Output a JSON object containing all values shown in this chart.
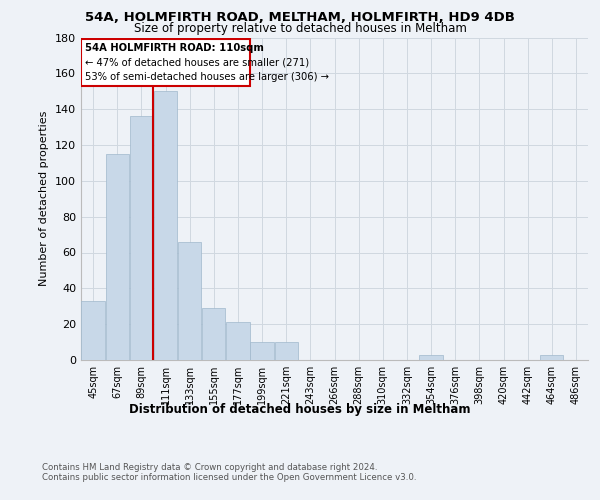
{
  "title1": "54A, HOLMFIRTH ROAD, MELTHAM, HOLMFIRTH, HD9 4DB",
  "title2": "Size of property relative to detached houses in Meltham",
  "xlabel": "Distribution of detached houses by size in Meltham",
  "ylabel": "Number of detached properties",
  "bar_color": "#c8d8e8",
  "bar_edge_color": "#a0b8cc",
  "bin_labels": [
    "45sqm",
    "67sqm",
    "89sqm",
    "111sqm",
    "133sqm",
    "155sqm",
    "177sqm",
    "199sqm",
    "221sqm",
    "243sqm",
    "266sqm",
    "288sqm",
    "310sqm",
    "332sqm",
    "354sqm",
    "376sqm",
    "398sqm",
    "420sqm",
    "442sqm",
    "464sqm",
    "486sqm"
  ],
  "bar_heights": [
    33,
    115,
    136,
    150,
    66,
    29,
    21,
    10,
    10,
    0,
    0,
    0,
    0,
    0,
    3,
    0,
    0,
    0,
    0,
    3,
    0
  ],
  "property_label": "54A HOLMFIRTH ROAD: 110sqm",
  "annotation_line1": "← 47% of detached houses are smaller (271)",
  "annotation_line2": "53% of semi-detached houses are larger (306) →",
  "ylim": [
    0,
    180
  ],
  "yticks": [
    0,
    20,
    40,
    60,
    80,
    100,
    120,
    140,
    160,
    180
  ],
  "box_color": "#cc0000",
  "grid_color": "#d0d8e0",
  "footnote1": "Contains HM Land Registry data © Crown copyright and database right 2024.",
  "footnote2": "Contains public sector information licensed under the Open Government Licence v3.0.",
  "background_color": "#eef2f7"
}
